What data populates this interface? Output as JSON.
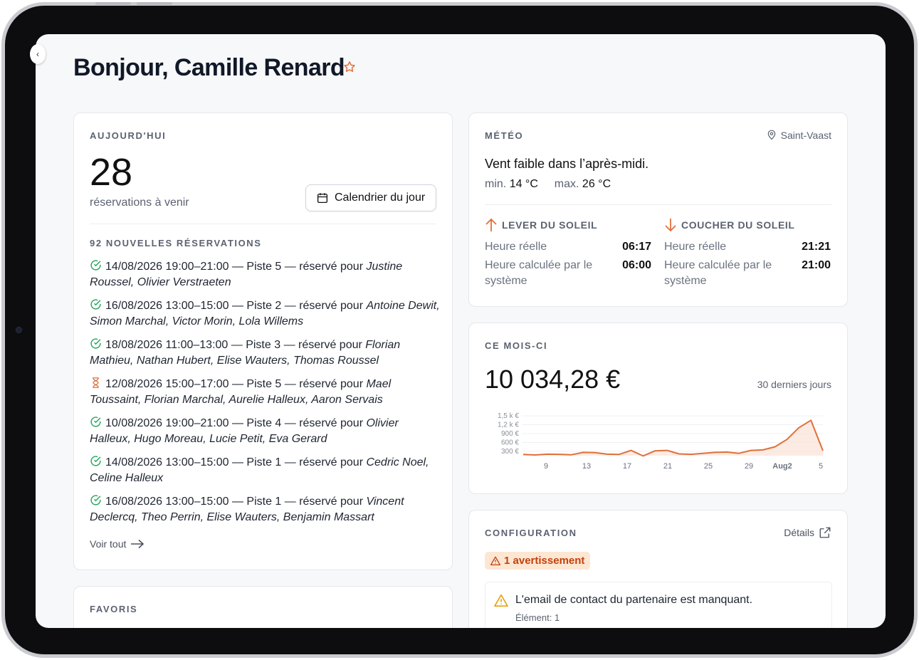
{
  "greeting": "Bonjour, Camille Renard",
  "today": {
    "label": "AUJOURD'HUI",
    "count": "28",
    "count_caption": "réservations à venir",
    "calendar_button": "Calendrier du jour",
    "new_label": "92 NOUVELLES RÉSERVATIONS",
    "reservations": [
      {
        "status": "confirmed",
        "text": "14/08/2026 19:00–21:00 — Piste 5 — réservé pour ",
        "names": "Justine Roussel, Olivier Verstraeten"
      },
      {
        "status": "confirmed",
        "text": "16/08/2026 13:00–15:00 — Piste 2 — réservé pour ",
        "names": "Antoine Dewit, Simon Marchal, Victor Morin, Lola Willems"
      },
      {
        "status": "confirmed",
        "text": "18/08/2026 11:00–13:00 — Piste 3 — réservé pour ",
        "names": "Florian Mathieu, Nathan Hubert, Elise Wauters, Thomas Roussel"
      },
      {
        "status": "pending",
        "text": "12/08/2026 15:00–17:00 — Piste 5 — réservé pour ",
        "names": "Mael Toussaint, Florian Marchal, Aurelie Halleux, Aaron Servais"
      },
      {
        "status": "confirmed",
        "text": "10/08/2026 19:00–21:00 — Piste 4 — réservé pour ",
        "names": "Olivier Halleux, Hugo Moreau, Lucie Petit, Eva Gerard"
      },
      {
        "status": "confirmed",
        "text": "14/08/2026 13:00–15:00 — Piste 1 — réservé pour ",
        "names": "Cedric Noel, Celine Halleux"
      },
      {
        "status": "confirmed",
        "text": "16/08/2026 13:00–15:00 — Piste 1 — réservé pour ",
        "names": "Vincent Declercq, Theo Perrin, Elise Wauters, Benjamin Massart"
      }
    ],
    "see_all": "Voir tout"
  },
  "favoris": {
    "label": "FAVORIS"
  },
  "meteo": {
    "label": "MÉTÉO",
    "location": "Saint-Vaast",
    "summary": "Vent faible dans l’après-midi.",
    "min_label": "min.",
    "min_value": "14 °C",
    "max_label": "max.",
    "max_value": "26 °C",
    "sunrise": {
      "label": "LEVER DU SOLEIL",
      "actual_label": "Heure réelle",
      "actual": "06:17",
      "calc_label": "Heure calculée par le système",
      "calc": "06:00"
    },
    "sunset": {
      "label": "COUCHER DU SOLEIL",
      "actual_label": "Heure réelle",
      "actual": "21:21",
      "calc_label": "Heure calculée par le système",
      "calc": "21:00"
    }
  },
  "mois": {
    "label": "CE MOIS-CI",
    "amount": "10 034,28 €",
    "period": "30 derniers jours"
  },
  "chart_data": {
    "type": "area",
    "y_ticks": [
      "1,5 k €",
      "1,2 k €",
      "900 €",
      "600 €",
      "300 €"
    ],
    "y_tick_values": [
      1500,
      1200,
      900,
      600,
      300
    ],
    "x_ticks": [
      "9",
      "13",
      "17",
      "21",
      "25",
      "29",
      "Aug2",
      "5"
    ],
    "ylim": [
      150,
      1600
    ],
    "values": [
      190,
      175,
      200,
      195,
      180,
      260,
      255,
      200,
      190,
      330,
      140,
      315,
      330,
      210,
      195,
      230,
      260,
      270,
      230,
      330,
      345,
      450,
      700,
      1100,
      1350,
      320
    ],
    "color": "#e0703a"
  },
  "config": {
    "label": "CONFIGURATION",
    "details": "Détails",
    "badge": "1 avertissement",
    "warning": "L'email de contact du partenaire est manquant.",
    "warning_sub": "Élément: 1"
  }
}
